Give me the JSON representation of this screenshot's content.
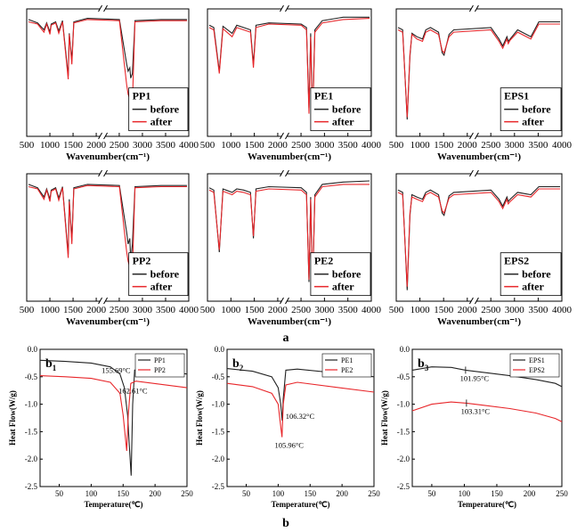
{
  "panel_a_label": "a",
  "panel_b_label": "b",
  "colors": {
    "before": "#222222",
    "after": "#e8262a",
    "series1": "#222222",
    "series2": "#e8262a"
  },
  "chart_data": [
    {
      "id": "pp1",
      "type": "line",
      "title": "",
      "xlabel": "Wavenumber(cm⁻¹)",
      "ylabel": "",
      "xticks": [
        500,
        1000,
        1500,
        2000,
        2500,
        3000,
        3500,
        4000
      ],
      "xlim": [
        500,
        4000
      ],
      "axis_break": "≈2000–2600",
      "legend_title": "PP1",
      "legend_position": "center-right",
      "series": [
        {
          "name": "before",
          "x": [
            500,
            700,
            841,
            900,
            973,
            1000,
            1100,
            1167,
            1250,
            1376,
            1400,
            1456,
            1500,
            1800,
            2700,
            2840,
            2867,
            2900,
            2917,
            2950,
            3000,
            3500,
            4000
          ],
          "y": [
            0.97,
            0.94,
            0.88,
            0.94,
            0.86,
            0.93,
            0.95,
            0.87,
            0.96,
            0.48,
            0.85,
            0.61,
            0.95,
            0.98,
            0.97,
            0.58,
            0.52,
            0.55,
            0.46,
            0.5,
            0.96,
            0.97,
            0.97
          ]
        },
        {
          "name": "after",
          "x": [
            500,
            700,
            841,
            900,
            973,
            1000,
            1100,
            1167,
            1250,
            1376,
            1400,
            1456,
            1500,
            1800,
            2700,
            2840,
            2867,
            2900,
            2917,
            2950,
            3000,
            3500,
            4000
          ],
          "y": [
            0.95,
            0.93,
            0.86,
            0.93,
            0.84,
            0.92,
            0.94,
            0.85,
            0.95,
            0.45,
            0.84,
            0.58,
            0.94,
            0.97,
            0.96,
            0.4,
            0.32,
            0.28,
            0.05,
            0.25,
            0.95,
            0.96,
            0.96
          ]
        }
      ]
    },
    {
      "id": "pe1",
      "type": "line",
      "title": "",
      "xlabel": "Wavenumber(cm⁻¹)",
      "ylabel": "",
      "xticks": [
        500,
        1000,
        1500,
        2000,
        2500,
        3000,
        3500,
        4000
      ],
      "xlim": [
        500,
        4000
      ],
      "axis_break": "≈2000–2600",
      "legend_title": "PE1",
      "legend_position": "center-right",
      "series": [
        {
          "name": "before",
          "x": [
            500,
            600,
            719,
            800,
            1000,
            1100,
            1250,
            1400,
            1463,
            1520,
            1800,
            2700,
            2800,
            2848,
            2880,
            2916,
            2960,
            3100,
            3500,
            4000
          ],
          "y": [
            0.92,
            0.9,
            0.52,
            0.91,
            0.85,
            0.92,
            0.9,
            0.88,
            0.58,
            0.92,
            0.94,
            0.93,
            0.9,
            0.2,
            0.85,
            0.1,
            0.88,
            0.96,
            0.99,
            0.99
          ]
        },
        {
          "name": "after",
          "x": [
            500,
            600,
            719,
            800,
            1000,
            1100,
            1250,
            1400,
            1463,
            1520,
            1800,
            2700,
            2800,
            2848,
            2880,
            2916,
            2960,
            3100,
            3500,
            4000
          ],
          "y": [
            0.9,
            0.88,
            0.5,
            0.89,
            0.82,
            0.9,
            0.88,
            0.86,
            0.55,
            0.9,
            0.93,
            0.92,
            0.88,
            0.15,
            0.82,
            0.05,
            0.86,
            0.94,
            0.97,
            0.98
          ]
        }
      ]
    },
    {
      "id": "eps1",
      "type": "line",
      "title": "",
      "xlabel": "Wavenumber(cm⁻¹)",
      "ylabel": "",
      "xticks": [
        500,
        1000,
        1500,
        2000,
        2500,
        3000,
        3500,
        4000
      ],
      "xlim": [
        500,
        4000
      ],
      "axis_break": "≈2000–2600",
      "legend_title": "EPS1",
      "legend_position": "center-right",
      "series": [
        {
          "name": "before",
          "x": [
            500,
            600,
            698,
            757,
            800,
            907,
            1028,
            1100,
            1200,
            1375,
            1452,
            1493,
            1601,
            1700,
            2700,
            2850,
            2920,
            3000,
            3025,
            3060,
            3200,
            3450,
            3600,
            4000
          ],
          "y": [
            0.9,
            0.88,
            0.1,
            0.65,
            0.85,
            0.82,
            0.8,
            0.88,
            0.9,
            0.86,
            0.68,
            0.66,
            0.84,
            0.88,
            0.9,
            0.8,
            0.74,
            0.82,
            0.78,
            0.8,
            0.88,
            0.82,
            0.95,
            0.95
          ]
        },
        {
          "name": "after",
          "x": [
            500,
            600,
            698,
            757,
            800,
            907,
            1028,
            1100,
            1200,
            1375,
            1452,
            1493,
            1601,
            1700,
            2700,
            2850,
            2920,
            3000,
            3025,
            3060,
            3200,
            3450,
            3600,
            4000
          ],
          "y": [
            0.88,
            0.86,
            0.12,
            0.67,
            0.84,
            0.8,
            0.78,
            0.86,
            0.88,
            0.84,
            0.7,
            0.68,
            0.82,
            0.86,
            0.88,
            0.78,
            0.72,
            0.8,
            0.76,
            0.79,
            0.86,
            0.8,
            0.93,
            0.93
          ]
        }
      ]
    },
    {
      "id": "pp2",
      "type": "line",
      "title": "",
      "xlabel": "Wavenumber(cm⁻¹)",
      "ylabel": "",
      "xticks": [
        500,
        1000,
        1500,
        2000,
        2500,
        3000,
        3500,
        4000
      ],
      "xlim": [
        500,
        4000
      ],
      "axis_break": "≈2000–2600",
      "legend_title": "PP2",
      "legend_position": "center-right",
      "series": [
        {
          "name": "before",
          "x": [
            500,
            700,
            841,
            900,
            973,
            1000,
            1100,
            1167,
            1250,
            1376,
            1400,
            1456,
            1500,
            1800,
            2700,
            2840,
            2867,
            2900,
            2917,
            2950,
            3000,
            3500,
            4000
          ],
          "y": [
            0.97,
            0.94,
            0.86,
            0.93,
            0.84,
            0.92,
            0.94,
            0.85,
            0.95,
            0.36,
            0.84,
            0.48,
            0.94,
            0.97,
            0.96,
            0.55,
            0.45,
            0.5,
            0.3,
            0.45,
            0.95,
            0.96,
            0.96
          ]
        },
        {
          "name": "after",
          "x": [
            500,
            700,
            841,
            900,
            973,
            1000,
            1100,
            1167,
            1250,
            1376,
            1400,
            1456,
            1500,
            1800,
            2700,
            2840,
            2867,
            2900,
            2917,
            2950,
            3000,
            3500,
            4000
          ],
          "y": [
            0.95,
            0.93,
            0.84,
            0.92,
            0.82,
            0.91,
            0.93,
            0.83,
            0.94,
            0.33,
            0.82,
            0.45,
            0.93,
            0.96,
            0.95,
            0.38,
            0.3,
            0.25,
            0.04,
            0.22,
            0.94,
            0.95,
            0.95
          ]
        }
      ]
    },
    {
      "id": "pe2",
      "type": "line",
      "title": "",
      "xlabel": "Wavenumber(cm⁻¹)",
      "ylabel": "",
      "xticks": [
        500,
        1000,
        1500,
        2000,
        2500,
        3000,
        3500,
        4000
      ],
      "xlim": [
        500,
        4000
      ],
      "axis_break": "≈2000–2600",
      "legend_title": "PE2",
      "legend_position": "center-right",
      "series": [
        {
          "name": "before",
          "x": [
            500,
            600,
            719,
            800,
            1000,
            1100,
            1250,
            1400,
            1463,
            1520,
            1800,
            2700,
            2800,
            2848,
            2880,
            2916,
            2960,
            3100,
            3500,
            4000
          ],
          "y": [
            0.94,
            0.92,
            0.38,
            0.93,
            0.9,
            0.93,
            0.92,
            0.9,
            0.5,
            0.93,
            0.95,
            0.94,
            0.9,
            0.12,
            0.86,
            0.04,
            0.88,
            0.97,
            0.99,
            1.0
          ]
        },
        {
          "name": "after",
          "x": [
            500,
            600,
            719,
            800,
            1000,
            1100,
            1250,
            1400,
            1463,
            1520,
            1800,
            2700,
            2800,
            2848,
            2880,
            2916,
            2960,
            3100,
            3500,
            4000
          ],
          "y": [
            0.92,
            0.9,
            0.4,
            0.91,
            0.88,
            0.91,
            0.9,
            0.88,
            0.52,
            0.91,
            0.93,
            0.92,
            0.88,
            0.14,
            0.84,
            0.06,
            0.86,
            0.95,
            0.97,
            0.97
          ]
        }
      ]
    },
    {
      "id": "eps2",
      "type": "line",
      "title": "",
      "xlabel": "Wavenumber(cm⁻¹)",
      "ylabel": "",
      "xticks": [
        500,
        1000,
        1500,
        2000,
        2500,
        3000,
        3500,
        4000
      ],
      "xlim": [
        500,
        4000
      ],
      "axis_break": "≈2000–2600",
      "legend_title": "EPS2",
      "legend_position": "center-right",
      "series": [
        {
          "name": "before",
          "x": [
            500,
            600,
            698,
            757,
            800,
            907,
            1028,
            1100,
            1200,
            1375,
            1452,
            1493,
            1601,
            1700,
            2700,
            2850,
            2920,
            3000,
            3025,
            3060,
            3200,
            3450,
            3600,
            4000
          ],
          "y": [
            0.92,
            0.9,
            0.05,
            0.7,
            0.88,
            0.86,
            0.84,
            0.9,
            0.92,
            0.88,
            0.72,
            0.7,
            0.87,
            0.9,
            0.92,
            0.84,
            0.78,
            0.86,
            0.82,
            0.84,
            0.9,
            0.88,
            0.95,
            0.95
          ]
        },
        {
          "name": "after",
          "x": [
            500,
            600,
            698,
            757,
            800,
            907,
            1028,
            1100,
            1200,
            1375,
            1452,
            1493,
            1601,
            1700,
            2700,
            2850,
            2920,
            3000,
            3025,
            3060,
            3200,
            3450,
            3600,
            4000
          ],
          "y": [
            0.9,
            0.88,
            0.08,
            0.72,
            0.86,
            0.84,
            0.82,
            0.88,
            0.9,
            0.86,
            0.74,
            0.72,
            0.85,
            0.88,
            0.9,
            0.82,
            0.76,
            0.84,
            0.8,
            0.82,
            0.88,
            0.86,
            0.93,
            0.93
          ]
        }
      ]
    },
    {
      "id": "b1",
      "type": "line",
      "title": "b",
      "xlabel": "Temperature(℃)",
      "ylabel": "Heat Flow(W/g)",
      "xlim": [
        20,
        250
      ],
      "ylim": [
        -2.5,
        0.0
      ],
      "xticks": [
        50,
        100,
        150,
        200,
        250
      ],
      "yticks": [
        0.0,
        -0.5,
        -1.0,
        -1.5,
        -2.0,
        -2.5
      ],
      "legend_position": "top-right",
      "series": [
        {
          "name": "PP1",
          "x": [
            20,
            60,
            100,
            130,
            145,
            152,
            157,
            160,
            162.61,
            165,
            168,
            180,
            250
          ],
          "y": [
            -0.2,
            -0.22,
            -0.25,
            -0.32,
            -0.45,
            -0.7,
            -1.2,
            -1.8,
            -2.3,
            -1.0,
            -0.38,
            -0.36,
            -0.45
          ]
        },
        {
          "name": "PP2",
          "x": [
            20,
            60,
            100,
            130,
            145,
            150,
            155.69,
            158,
            162,
            170,
            250
          ],
          "y": [
            -0.48,
            -0.5,
            -0.53,
            -0.6,
            -0.8,
            -1.2,
            -1.85,
            -1.2,
            -0.62,
            -0.58,
            -0.7
          ]
        }
      ],
      "annotations": [
        {
          "x": 155.69,
          "text": "155.69°C"
        },
        {
          "x": 162.61,
          "text": "162.61°C"
        }
      ]
    },
    {
      "id": "b2",
      "type": "line",
      "title": "b",
      "xlabel": "Temperature(℃)",
      "ylabel": "Heat Flow(W/g)",
      "xlim": [
        20,
        250
      ],
      "ylim": [
        -2.5,
        0.0
      ],
      "xticks": [
        50,
        100,
        150,
        200,
        250
      ],
      "yticks": [
        0.0,
        -0.5,
        -1.0,
        -1.5,
        -2.0,
        -2.5
      ],
      "legend_position": "top-right",
      "series": [
        {
          "name": "PE1",
          "x": [
            20,
            60,
            90,
            100,
            104,
            106.32,
            108,
            112,
            130,
            250
          ],
          "y": [
            -0.35,
            -0.4,
            -0.5,
            -0.7,
            -1.0,
            -1.3,
            -0.9,
            -0.38,
            -0.36,
            -0.5
          ]
        },
        {
          "name": "PE2",
          "x": [
            20,
            60,
            90,
            100,
            103,
            105.96,
            108,
            112,
            130,
            250
          ],
          "y": [
            -0.62,
            -0.68,
            -0.8,
            -1.0,
            -1.3,
            -1.6,
            -1.0,
            -0.65,
            -0.6,
            -0.78
          ]
        }
      ],
      "annotations": [
        {
          "x": 106.32,
          "text": "106.32°C"
        },
        {
          "x": 105.96,
          "text": "105.96°C"
        }
      ]
    },
    {
      "id": "b3",
      "type": "line",
      "title": "b",
      "xlabel": "Temperature(℃)",
      "ylabel": "Heat Flow(W/g)",
      "xlim": [
        20,
        250
      ],
      "ylim": [
        -2.5,
        0.0
      ],
      "xticks": [
        50,
        100,
        150,
        200,
        250
      ],
      "yticks": [
        0.0,
        -0.5,
        -1.0,
        -1.5,
        -2.0,
        -2.5
      ],
      "legend_position": "top-right",
      "series": [
        {
          "name": "EPS1",
          "x": [
            20,
            50,
            80,
            101.95,
            130,
            170,
            210,
            240,
            250
          ],
          "y": [
            -0.38,
            -0.32,
            -0.33,
            -0.38,
            -0.42,
            -0.48,
            -0.55,
            -0.62,
            -0.68
          ]
        },
        {
          "name": "EPS2",
          "x": [
            20,
            50,
            80,
            103.31,
            130,
            170,
            210,
            240,
            250
          ],
          "y": [
            -1.12,
            -1.0,
            -0.96,
            -0.98,
            -1.02,
            -1.08,
            -1.16,
            -1.26,
            -1.32
          ]
        }
      ],
      "annotations": [
        {
          "x": 101.95,
          "text": "101.95°C"
        },
        {
          "x": 103.31,
          "text": "103.31°C"
        }
      ]
    }
  ]
}
